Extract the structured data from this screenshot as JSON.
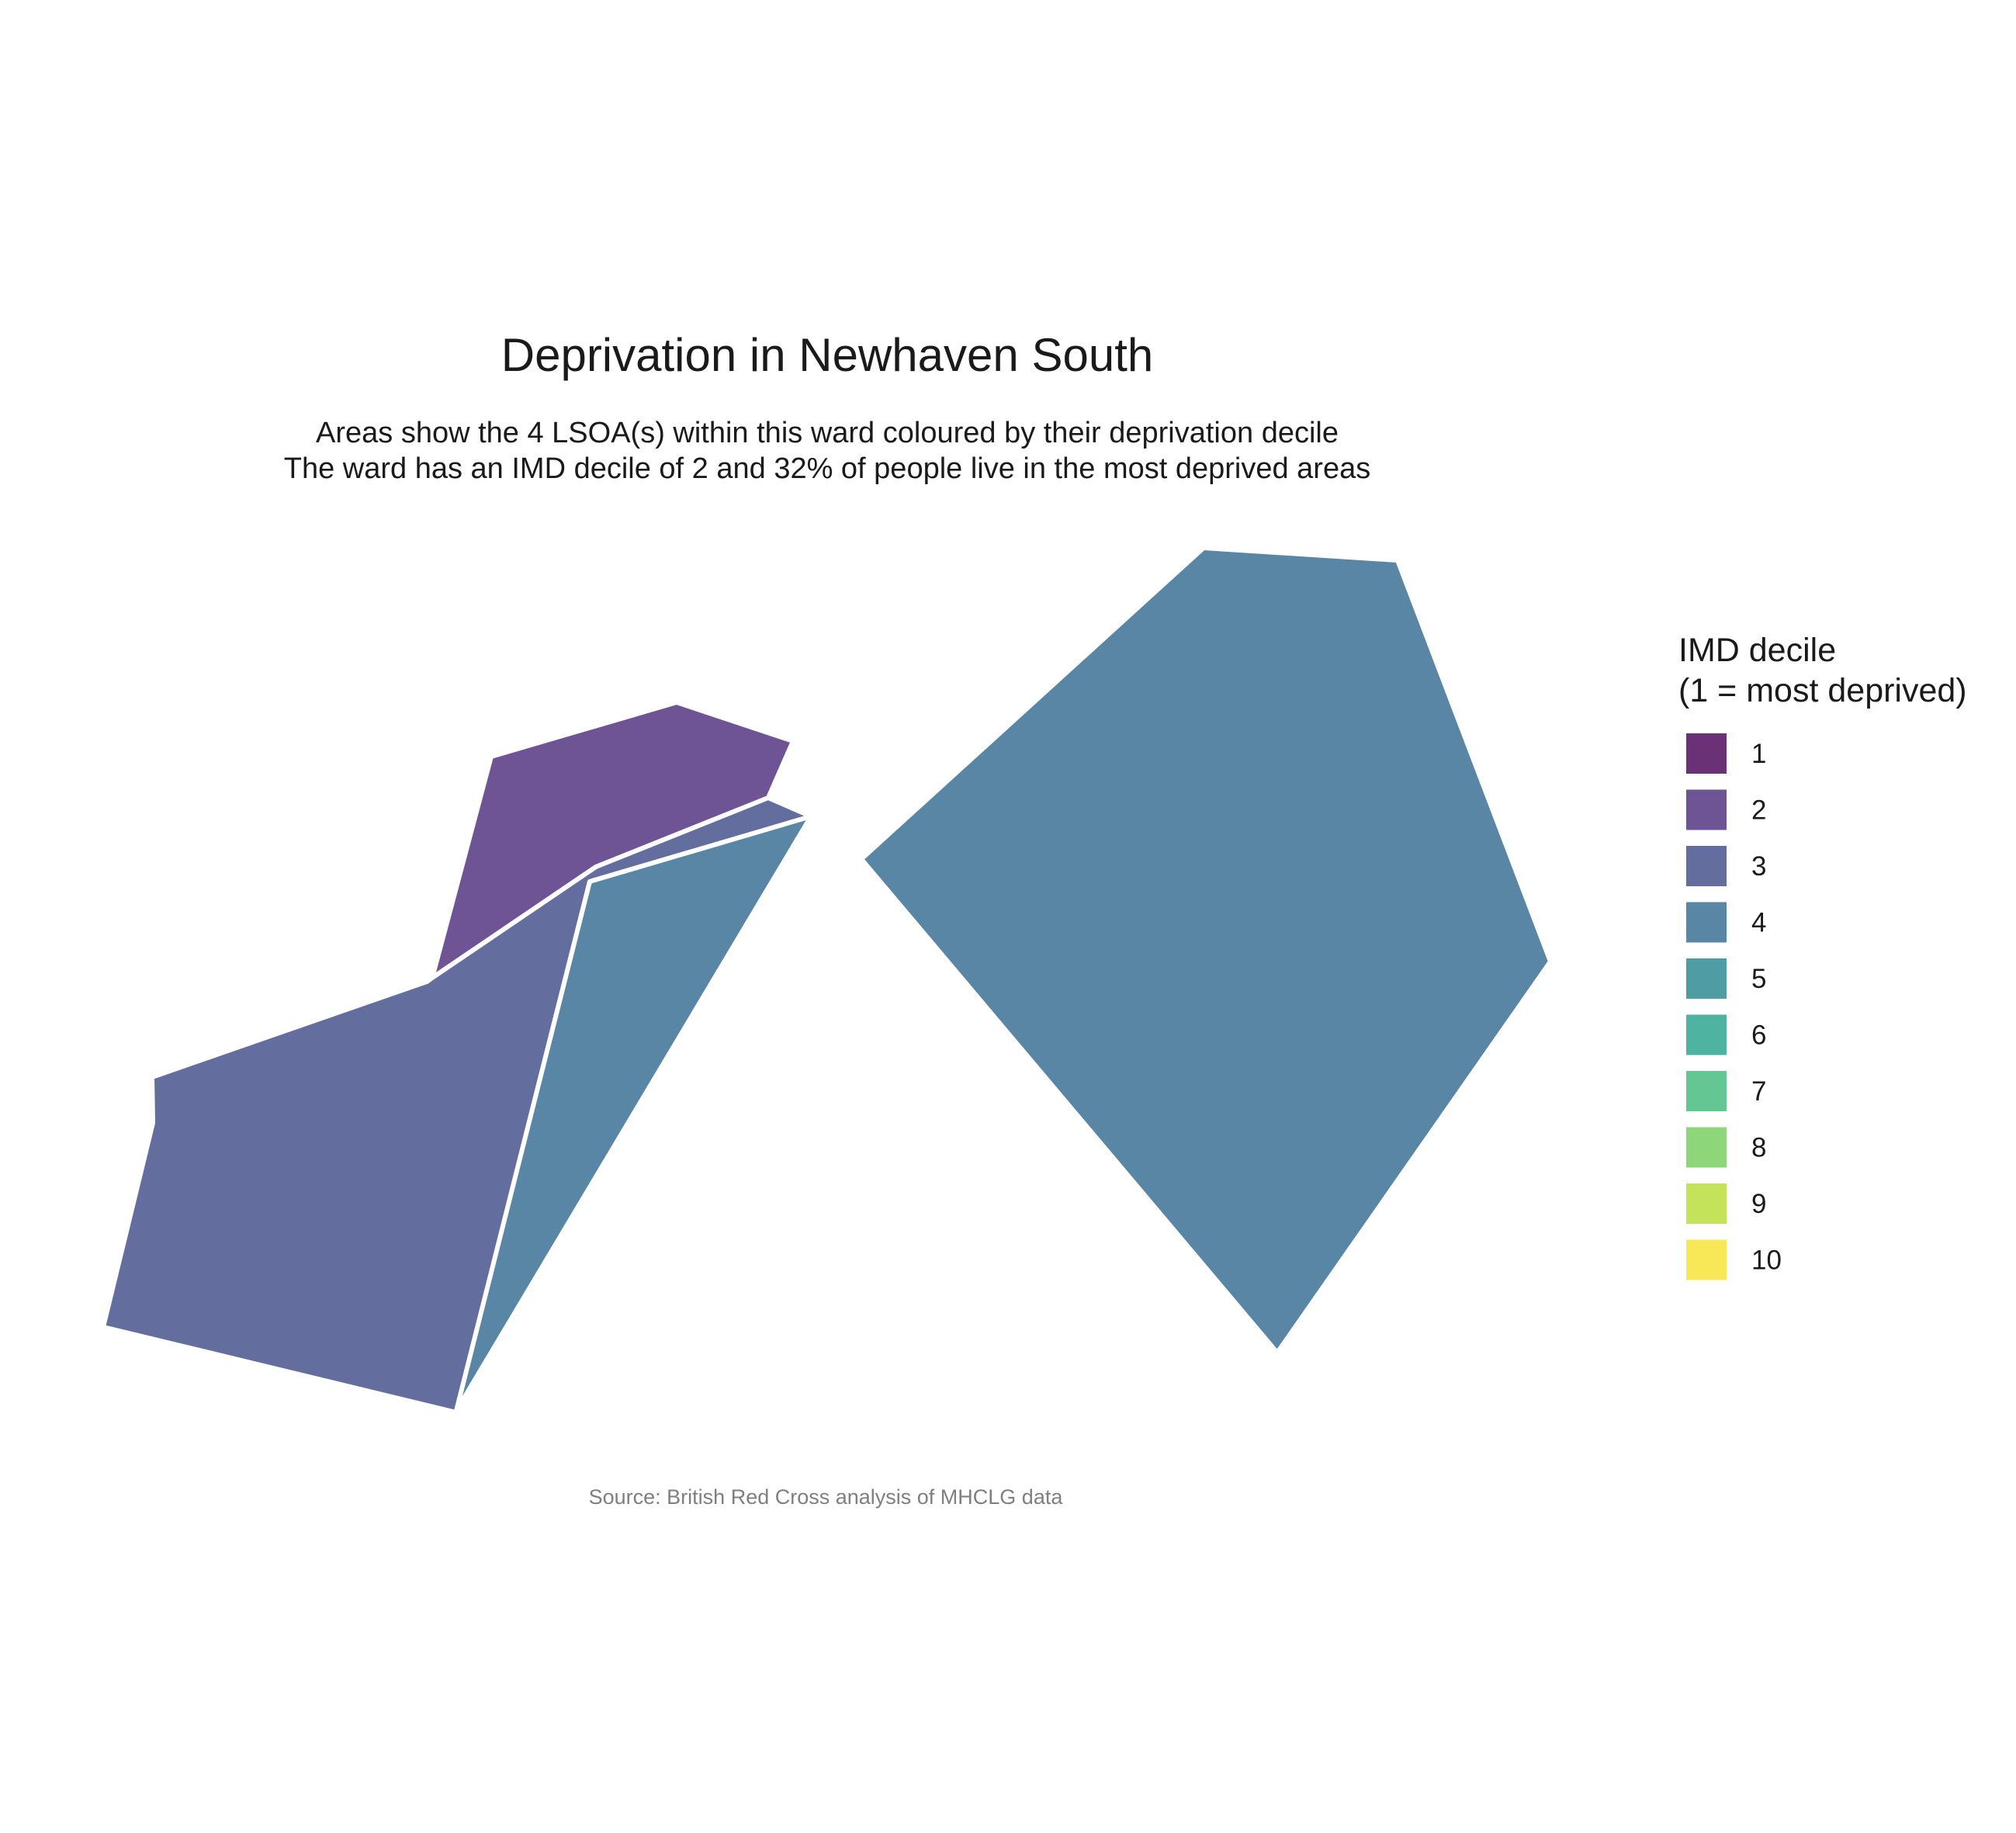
{
  "title": "Deprivation in Newhaven South",
  "subtitle_lines": [
    "Areas show the 4 LSOA(s) within this ward coloured by their deprivation decile",
    "The ward has an IMD decile of 2 and 32% of people live in the most deprived areas"
  ],
  "caption": "Source: British Red Cross analysis of MHCLG data",
  "legend": {
    "title_lines": [
      "IMD decile",
      "(1 = most deprived)"
    ],
    "items": [
      {
        "label": "1",
        "color": "#6a3177"
      },
      {
        "label": "2",
        "color": "#6e5494"
      },
      {
        "label": "3",
        "color": "#646e9e"
      },
      {
        "label": "4",
        "color": "#5886a4"
      },
      {
        "label": "5",
        "color": "#509ca5"
      },
      {
        "label": "6",
        "color": "#4eb3a0"
      },
      {
        "label": "7",
        "color": "#64c693"
      },
      {
        "label": "8",
        "color": "#8dd77a"
      },
      {
        "label": "9",
        "color": "#c4e35b"
      },
      {
        "label": "10",
        "color": "#f8e857"
      }
    ]
  },
  "areas": [
    {
      "name": "lsoa-decile-2",
      "decile": 2
    },
    {
      "name": "lsoa-decile-3",
      "decile": 3
    },
    {
      "name": "lsoa-decile-4-west",
      "decile": 4
    },
    {
      "name": "lsoa-decile-4-east",
      "decile": 4
    }
  ]
}
